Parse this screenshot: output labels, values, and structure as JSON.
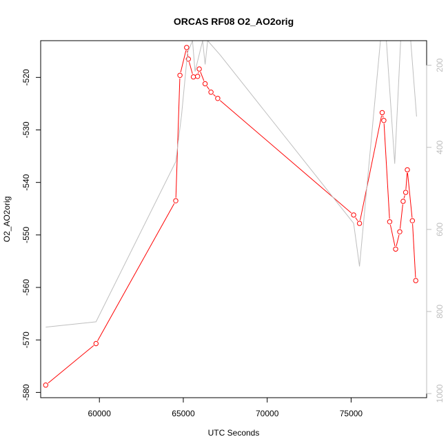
{
  "chart_data": {
    "type": "line",
    "title": "ORCAS RF08 O2_AO2orig",
    "xlabel": "UTC Seconds",
    "ylabel": "O2_AO2orig",
    "xlim": [
      56500,
      79500
    ],
    "ylim": [
      -581,
      -513
    ],
    "y2lim": [
      1010,
      140
    ],
    "x_ticks": [
      60000,
      65000,
      70000,
      75000
    ],
    "x_tick_labels": [
      "60000",
      "65000",
      "70000",
      "75000"
    ],
    "y_ticks": [
      -520,
      -530,
      -540,
      -550,
      -560,
      -570,
      -580
    ],
    "y_tick_labels": [
      "-520",
      "-530",
      "-540",
      "-550",
      "-560",
      "-570",
      "-580"
    ],
    "y2_ticks": [
      200,
      400,
      600,
      800,
      1000
    ],
    "y2_tick_labels": [
      "200",
      "400",
      "600",
      "800",
      "1000"
    ],
    "grid": false,
    "colors": {
      "series": "#ff0000",
      "secondary": "#bebebe",
      "axis": "#000000"
    },
    "series": [
      {
        "axis": "left",
        "style": "line+markers",
        "color": "#ff0000",
        "x": [
          56800,
          59800,
          64550,
          64800,
          65200,
          65300,
          65600,
          65850,
          65950,
          66300,
          66650,
          67050,
          75150,
          75500,
          76850,
          76950,
          77300,
          77650,
          77900,
          78100,
          78250,
          78350,
          78650,
          78850
        ],
        "y": [
          -578.6,
          -570.7,
          -543.5,
          -519.6,
          -514.3,
          -516.5,
          -519.9,
          -519.8,
          -518.4,
          -521.2,
          -522.8,
          -524.0,
          -546.2,
          -547.8,
          -526.7,
          -528.2,
          -547.5,
          -552.7,
          -549.4,
          -543.6,
          -541.9,
          -537.6,
          -547.3,
          -558.7
        ]
      },
      {
        "axis": "right",
        "style": "line",
        "color": "#bebebe",
        "x": [
          56800,
          59800,
          64550,
          64900,
          65250,
          65550,
          65700,
          66150,
          66300,
          66450,
          67200,
          75150,
          75500,
          76750,
          77100,
          77600,
          77950,
          78550,
          78900
        ],
        "y": [
          838,
          825,
          435,
          320,
          170,
          140,
          215,
          140,
          198,
          140,
          175,
          585,
          690,
          140,
          140,
          440,
          140,
          140,
          325
        ]
      }
    ]
  }
}
